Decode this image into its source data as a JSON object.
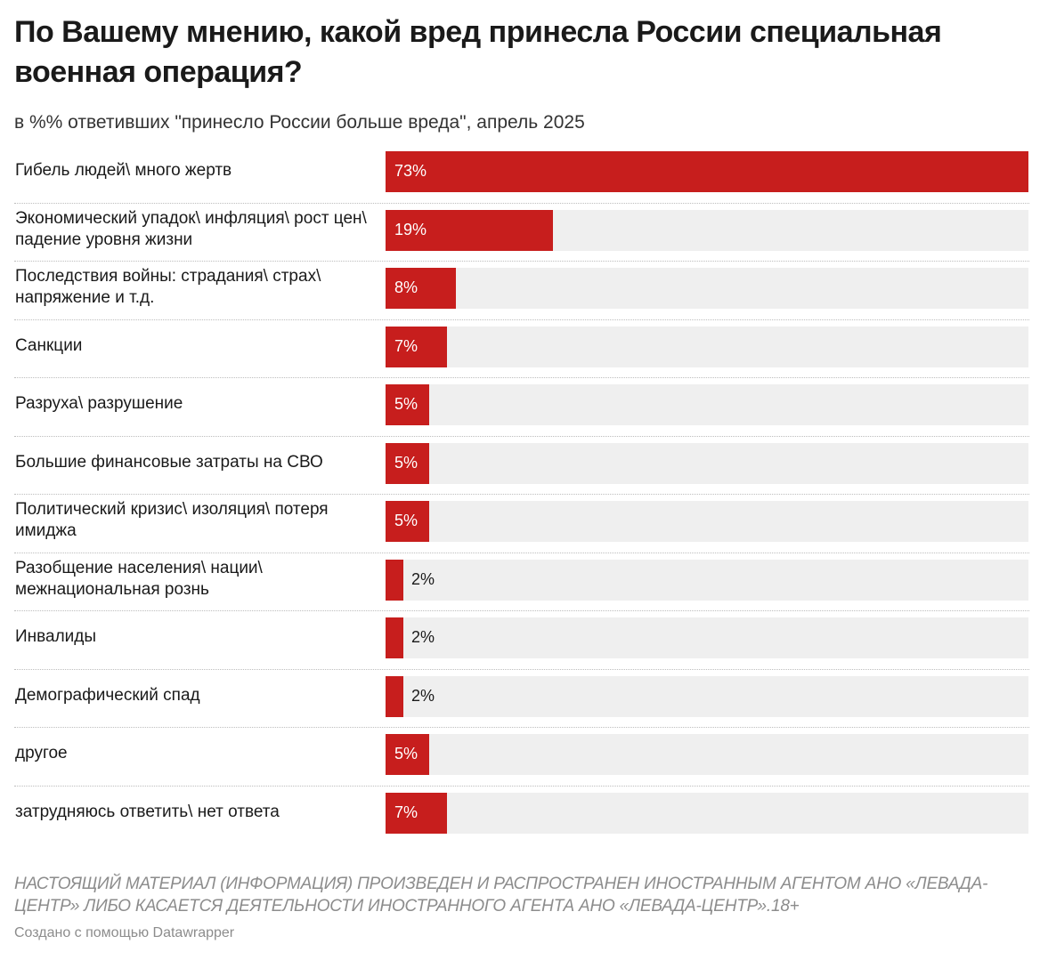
{
  "title": "По Вашему мнению, какой вред принесла России специальная военная операция?",
  "subtitle": "в %% ответивших \"принесло России больше вреда\", апрель 2025",
  "notes": "НАСТОЯЩИЙ МАТЕРИАЛ (ИНФОРМАЦИЯ) ПРОИЗВЕДЕН И РАСПРОСТРАНЕН ИНОСТРАННЫМ АГЕНТОМ АНО «ЛЕВАДА-ЦЕНТР» ЛИБО КАСАЕТСЯ ДЕЯТЕЛЬНОСТИ ИНОСТРАННОГО АГЕНТА АНО «ЛЕВАДА-ЦЕНТР».18+",
  "credit": "Создано с помощью Datawrapper",
  "colors": {
    "bar": "#c71e1d",
    "bar_background": "#efefef"
  },
  "chart_data": {
    "type": "bar",
    "orientation": "horizontal",
    "title": "По Вашему мнению, какой вред принесла России специальная военная операция?",
    "subtitle": "в %% ответивших \"принесло России больше вреда\", апрель 2025",
    "xlim": [
      0,
      73
    ],
    "grid": false,
    "categories": [
      "Гибель людей\\ много жертв",
      "Экономический упадок\\ инфляция\\ рост цен\\ падение уровня жизни",
      "Последствия войны: страдания\\ страх\\ напряжение и т.д.",
      "Санкции",
      "Разруха\\ разрушение",
      "Большие финансовые затраты на СВО",
      "Политический кризис\\ изоляция\\ потеря имиджа",
      "Разобщение населения\\ нации\\ межнациональная рознь",
      "Инвалиды",
      "Демографический спад",
      "другое",
      "затрудняюсь ответить\\ нет ответа"
    ],
    "values": [
      73,
      19,
      8,
      7,
      5,
      5,
      5,
      2,
      2,
      2,
      5,
      7
    ],
    "value_labels": [
      "73%",
      "19%",
      "8%",
      "7%",
      "5%",
      "5%",
      "5%",
      "2%",
      "2%",
      "2%",
      "5%",
      "7%"
    ]
  }
}
